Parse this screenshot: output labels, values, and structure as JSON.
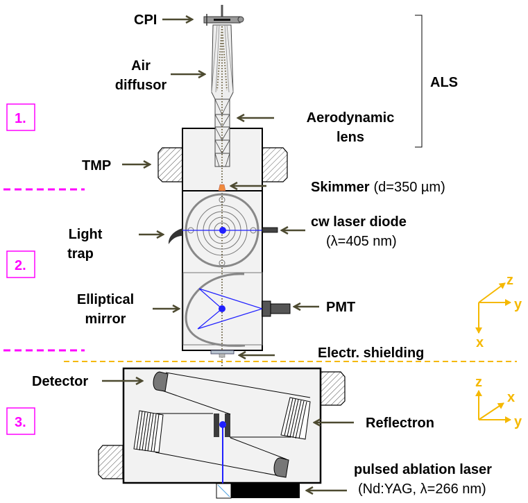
{
  "labels": {
    "cpi": "CPI",
    "air_diffusor": [
      "Air",
      "diffusor"
    ],
    "aerodynamic_lens": [
      "Aerodynamic",
      "lens"
    ],
    "als": "ALS",
    "tmp": "TMP",
    "skimmer": "Skimmer",
    "skimmer_detail": "(d=350 µm)",
    "light_trap": [
      "Light",
      "trap"
    ],
    "cw_laser": "cw laser diode",
    "cw_laser_detail": "(λ=405 nm)",
    "elliptical_mirror": [
      "Elliptical",
      "mirror"
    ],
    "pmt": "PMT",
    "shielding": "Electr. shielding",
    "detector": "Detector",
    "reflectron": "Reflectron",
    "pulsed_laser": "pulsed ablation laser",
    "pulsed_laser_detail": "(Nd:YAG, λ=266 nm)"
  },
  "sections": [
    "1.",
    "2.",
    "3."
  ],
  "axes": {
    "upper": {
      "z": "z",
      "y": "y",
      "x": "x"
    },
    "lower": {
      "z": "z",
      "x": "x",
      "y": "y"
    }
  },
  "colors": {
    "section_marker": "#ff00ff",
    "axes": "#f5b800",
    "laser_beam": "#2020ff",
    "skimmer": "#f08a3c",
    "arrow": "#4d4a30"
  }
}
